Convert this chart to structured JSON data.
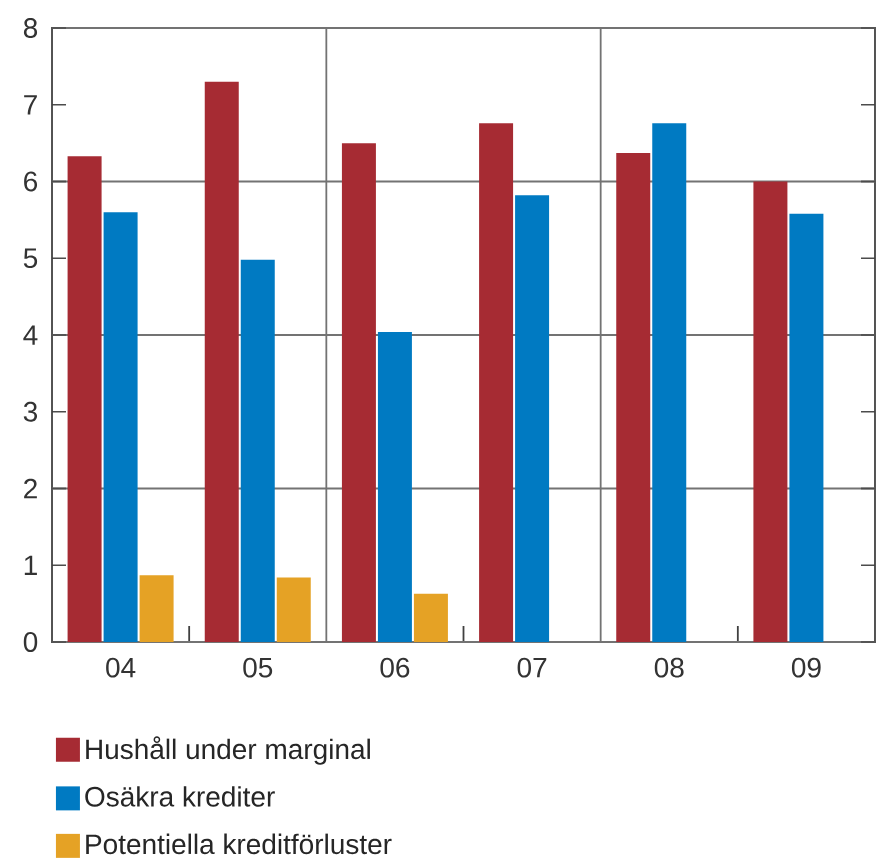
{
  "chart_data": {
    "type": "bar",
    "categories": [
      "04",
      "05",
      "06",
      "07",
      "08",
      "09"
    ],
    "series": [
      {
        "name": "Hushåll under marginal",
        "color": "#a62b33",
        "values": [
          6.33,
          7.3,
          6.5,
          6.76,
          6.37,
          6.0
        ]
      },
      {
        "name": "Osäkra krediter",
        "color": "#007ac2",
        "values": [
          5.6,
          4.98,
          4.04,
          5.82,
          6.76,
          5.58
        ]
      },
      {
        "name": "Potentiella kreditförluster",
        "color": "#e5a225",
        "values": [
          0.87,
          0.84,
          0.63,
          null,
          null,
          null
        ]
      }
    ],
    "ylim": [
      0,
      8
    ],
    "yticks": [
      0,
      1,
      2,
      3,
      4,
      5,
      6,
      7,
      8
    ],
    "grid": true,
    "legend": "bottom"
  }
}
